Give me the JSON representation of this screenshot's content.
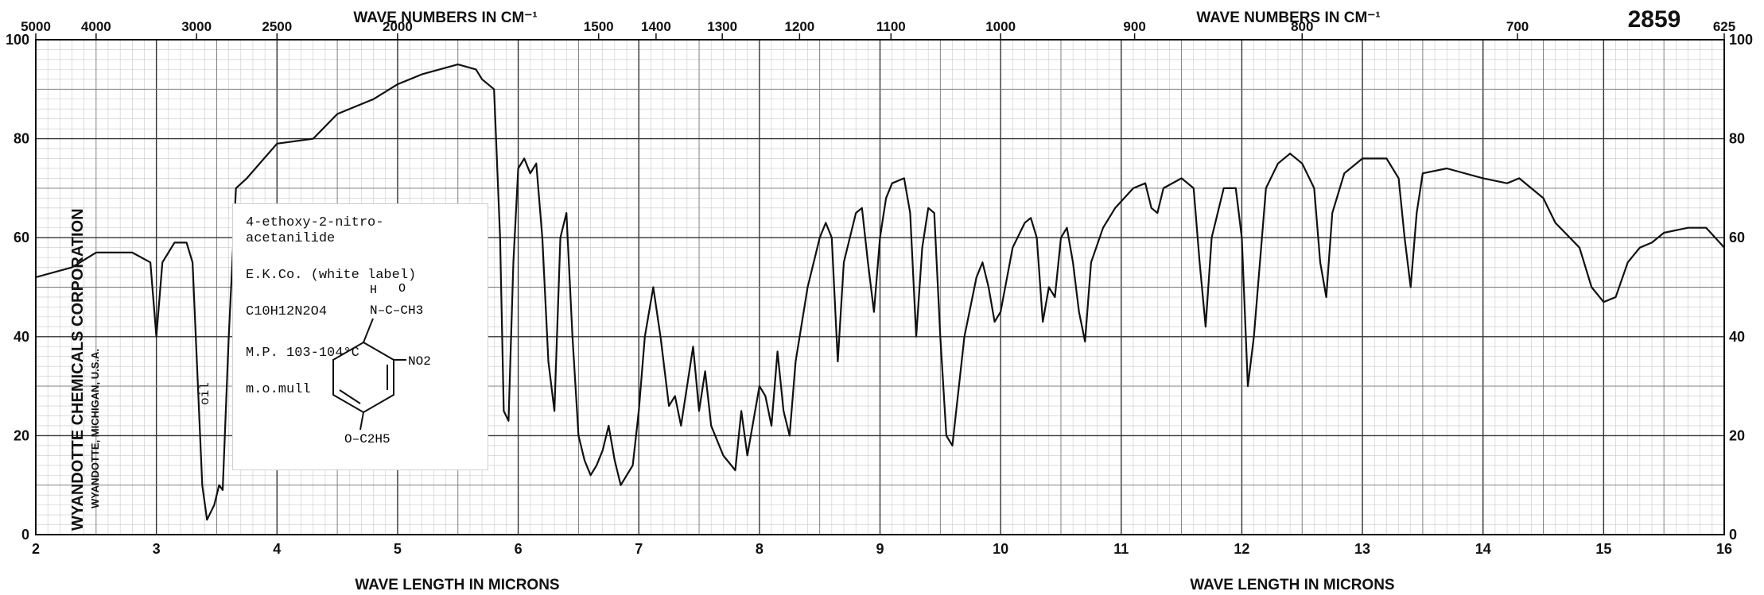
{
  "header": {
    "spectrum_number": "2859",
    "top_axis_title": "WAVE NUMBERS IN CM⁻¹",
    "bottom_axis_title": "WAVE LENGTH IN MICRONS"
  },
  "sample": {
    "name_line1": "4-ethoxy-2-nitro-",
    "name_line2": "acetanilide",
    "source": "E.K.Co. (white label)",
    "formula": "C10H12N2O4",
    "melting_point": "M.P. 103-104°C",
    "medium": "m.o.mull",
    "struct_h": "H",
    "struct_o": "O",
    "struct_n_group": "N–C–CH3",
    "struct_no2": "NO2",
    "struct_oet": "O–C2H5"
  },
  "annotations": {
    "oil": "oil"
  },
  "maker": {
    "name": "WYANDOTTE CHEMICALS CORPORATION",
    "location": "WYANDOTTE, MICHIGAN, U.S.A."
  },
  "chart_data": {
    "type": "line",
    "xlabel": "WAVE LENGTH IN MICRONS",
    "ylabel": "",
    "xlim": [
      2,
      16
    ],
    "ylim": [
      0,
      100
    ],
    "x_ticks": [
      2,
      3,
      4,
      5,
      6,
      7,
      8,
      9,
      10,
      11,
      12,
      13,
      14,
      15,
      16
    ],
    "y_ticks_left": [
      0,
      20,
      40,
      60,
      80,
      100
    ],
    "y_ticks_right": [
      0,
      20,
      40,
      60,
      80,
      100
    ],
    "top_ticks": [
      {
        "label": "5000",
        "x": 2.0
      },
      {
        "label": "4000",
        "x": 2.5
      },
      {
        "label": "3000",
        "x": 3.333
      },
      {
        "label": "2500",
        "x": 4.0
      },
      {
        "label": "2000",
        "x": 5.0
      },
      {
        "label": "1500",
        "x": 6.667
      },
      {
        "label": "1400",
        "x": 7.143
      },
      {
        "label": "1300",
        "x": 7.692
      },
      {
        "label": "1200",
        "x": 8.333
      },
      {
        "label": "1100",
        "x": 9.091
      },
      {
        "label": "1000",
        "x": 10.0
      },
      {
        "label": "900",
        "x": 11.111
      },
      {
        "label": "800",
        "x": 12.5
      },
      {
        "label": "700",
        "x": 14.286
      },
      {
        "label": "625",
        "x": 16.0
      }
    ],
    "series": [
      {
        "points": [
          [
            2.0,
            52
          ],
          [
            2.3,
            54
          ],
          [
            2.5,
            57
          ],
          [
            2.8,
            57
          ],
          [
            2.95,
            55
          ],
          [
            3.0,
            40
          ],
          [
            3.05,
            55
          ],
          [
            3.15,
            59
          ],
          [
            3.25,
            59
          ],
          [
            3.3,
            55
          ],
          [
            3.38,
            10
          ],
          [
            3.42,
            3
          ],
          [
            3.48,
            6
          ],
          [
            3.52,
            10
          ],
          [
            3.55,
            9
          ],
          [
            3.6,
            40
          ],
          [
            3.66,
            70
          ],
          [
            3.75,
            72
          ],
          [
            4.0,
            79
          ],
          [
            4.3,
            80
          ],
          [
            4.5,
            85
          ],
          [
            4.8,
            88
          ],
          [
            5.0,
            91
          ],
          [
            5.2,
            93
          ],
          [
            5.5,
            95
          ],
          [
            5.65,
            94
          ],
          [
            5.7,
            92
          ],
          [
            5.8,
            90
          ],
          [
            5.85,
            60
          ],
          [
            5.88,
            25
          ],
          [
            5.92,
            23
          ],
          [
            5.96,
            55
          ],
          [
            6.0,
            74
          ],
          [
            6.05,
            76
          ],
          [
            6.1,
            73
          ],
          [
            6.15,
            75
          ],
          [
            6.2,
            60
          ],
          [
            6.25,
            35
          ],
          [
            6.3,
            25
          ],
          [
            6.35,
            60
          ],
          [
            6.4,
            65
          ],
          [
            6.45,
            40
          ],
          [
            6.5,
            20
          ],
          [
            6.55,
            15
          ],
          [
            6.6,
            12
          ],
          [
            6.65,
            14
          ],
          [
            6.7,
            17
          ],
          [
            6.75,
            22
          ],
          [
            6.8,
            15
          ],
          [
            6.85,
            10
          ],
          [
            6.95,
            14
          ],
          [
            7.0,
            25
          ],
          [
            7.05,
            40
          ],
          [
            7.12,
            50
          ],
          [
            7.18,
            40
          ],
          [
            7.25,
            26
          ],
          [
            7.3,
            28
          ],
          [
            7.35,
            22
          ],
          [
            7.45,
            38
          ],
          [
            7.5,
            25
          ],
          [
            7.55,
            33
          ],
          [
            7.6,
            22
          ],
          [
            7.7,
            16
          ],
          [
            7.8,
            13
          ],
          [
            7.85,
            25
          ],
          [
            7.9,
            16
          ],
          [
            8.0,
            30
          ],
          [
            8.05,
            28
          ],
          [
            8.1,
            22
          ],
          [
            8.15,
            37
          ],
          [
            8.2,
            25
          ],
          [
            8.25,
            20
          ],
          [
            8.3,
            35
          ],
          [
            8.4,
            50
          ],
          [
            8.5,
            60
          ],
          [
            8.55,
            63
          ],
          [
            8.6,
            60
          ],
          [
            8.65,
            35
          ],
          [
            8.7,
            55
          ],
          [
            8.8,
            65
          ],
          [
            8.85,
            66
          ],
          [
            8.9,
            55
          ],
          [
            8.95,
            45
          ],
          [
            9.0,
            60
          ],
          [
            9.05,
            68
          ],
          [
            9.1,
            71
          ],
          [
            9.2,
            72
          ],
          [
            9.25,
            65
          ],
          [
            9.3,
            40
          ],
          [
            9.35,
            58
          ],
          [
            9.4,
            66
          ],
          [
            9.45,
            65
          ],
          [
            9.5,
            40
          ],
          [
            9.55,
            20
          ],
          [
            9.6,
            18
          ],
          [
            9.7,
            40
          ],
          [
            9.8,
            52
          ],
          [
            9.85,
            55
          ],
          [
            9.9,
            50
          ],
          [
            9.95,
            43
          ],
          [
            10.0,
            45
          ],
          [
            10.1,
            58
          ],
          [
            10.2,
            63
          ],
          [
            10.25,
            64
          ],
          [
            10.3,
            60
          ],
          [
            10.35,
            43
          ],
          [
            10.4,
            50
          ],
          [
            10.45,
            48
          ],
          [
            10.5,
            60
          ],
          [
            10.55,
            62
          ],
          [
            10.6,
            55
          ],
          [
            10.65,
            45
          ],
          [
            10.7,
            39
          ],
          [
            10.75,
            55
          ],
          [
            10.85,
            62
          ],
          [
            10.95,
            66
          ],
          [
            11.1,
            70
          ],
          [
            11.2,
            71
          ],
          [
            11.25,
            66
          ],
          [
            11.3,
            65
          ],
          [
            11.35,
            70
          ],
          [
            11.5,
            72
          ],
          [
            11.6,
            70
          ],
          [
            11.65,
            55
          ],
          [
            11.7,
            42
          ],
          [
            11.75,
            60
          ],
          [
            11.85,
            70
          ],
          [
            11.95,
            70
          ],
          [
            12.0,
            60
          ],
          [
            12.05,
            30
          ],
          [
            12.1,
            40
          ],
          [
            12.2,
            70
          ],
          [
            12.3,
            75
          ],
          [
            12.4,
            77
          ],
          [
            12.5,
            75
          ],
          [
            12.6,
            70
          ],
          [
            12.65,
            55
          ],
          [
            12.7,
            48
          ],
          [
            12.75,
            65
          ],
          [
            12.85,
            73
          ],
          [
            13.0,
            76
          ],
          [
            13.2,
            76
          ],
          [
            13.3,
            72
          ],
          [
            13.35,
            60
          ],
          [
            13.4,
            50
          ],
          [
            13.45,
            65
          ],
          [
            13.5,
            73
          ],
          [
            13.7,
            74
          ],
          [
            14.0,
            72
          ],
          [
            14.2,
            71
          ],
          [
            14.3,
            72
          ],
          [
            14.5,
            68
          ],
          [
            14.6,
            63
          ],
          [
            14.8,
            58
          ],
          [
            14.9,
            50
          ],
          [
            15.0,
            47
          ],
          [
            15.1,
            48
          ],
          [
            15.2,
            55
          ],
          [
            15.3,
            58
          ],
          [
            15.4,
            59
          ],
          [
            15.5,
            61
          ],
          [
            15.7,
            62
          ],
          [
            15.85,
            62
          ],
          [
            16.0,
            58
          ]
        ]
      }
    ],
    "grid": true,
    "legend": "none"
  }
}
